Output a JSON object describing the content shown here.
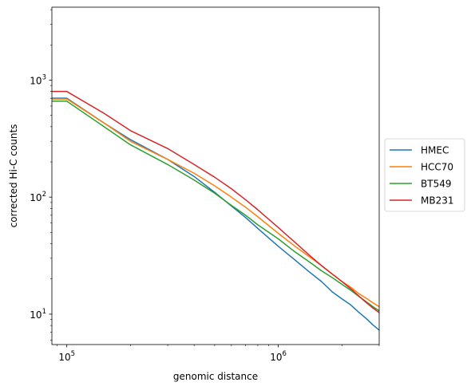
{
  "chart_data": {
    "type": "line",
    "title": "",
    "xlabel": "genomic distance",
    "ylabel": "corrected Hi-C counts",
    "xscale": "log",
    "yscale": "log",
    "xlim": [
      85000,
      3000000
    ],
    "ylim": [
      5.5,
      4200
    ],
    "grid": false,
    "legend_position": "outside-right",
    "x_ticks": [
      {
        "value": 100000,
        "base": "10",
        "exp": "5"
      },
      {
        "value": 1000000,
        "base": "10",
        "exp": "6"
      }
    ],
    "y_ticks": [
      {
        "value": 10,
        "base": "10",
        "exp": "1"
      },
      {
        "value": 100,
        "base": "10",
        "exp": "2"
      },
      {
        "value": 1000,
        "base": "10",
        "exp": "3"
      }
    ],
    "series": [
      {
        "name": "HMEC",
        "color": "#1f77b4",
        "x": [
          85000,
          100000,
          150000,
          200000,
          300000,
          400000,
          500000,
          600000,
          700000,
          800000,
          1000000,
          1200000,
          1400000,
          1600000,
          1800000,
          2000000,
          2200000,
          2400000,
          2600000,
          2800000,
          3000000
        ],
        "y": [
          700,
          700,
          430,
          310,
          210,
          150,
          110,
          84,
          67,
          54,
          38,
          29,
          23,
          19,
          15.5,
          13.5,
          12,
          10.4,
          9.2,
          8.1,
          7.3
        ]
      },
      {
        "name": "HCC70",
        "color": "#ff7f0e",
        "x": [
          85000,
          100000,
          150000,
          200000,
          300000,
          400000,
          500000,
          600000,
          700000,
          800000,
          1000000,
          1200000,
          1400000,
          1600000,
          1800000,
          2000000,
          2200000,
          2400000,
          2600000,
          2800000,
          3000000
        ],
        "y": [
          690,
          690,
          430,
          300,
          210,
          160,
          125,
          100,
          82,
          68,
          49,
          38,
          31,
          26,
          22,
          19,
          17,
          15,
          13.7,
          12.5,
          11.6
        ]
      },
      {
        "name": "BT549",
        "color": "#2ca02c",
        "x": [
          85000,
          100000,
          150000,
          200000,
          300000,
          400000,
          500000,
          600000,
          700000,
          800000,
          1000000,
          1200000,
          1400000,
          1600000,
          1800000,
          2000000,
          2200000,
          2400000,
          2600000,
          2800000,
          3000000
        ],
        "y": [
          660,
          660,
          400,
          280,
          190,
          140,
          108,
          85,
          70,
          58,
          44,
          34,
          28,
          23.5,
          20.5,
          18,
          16,
          14.2,
          12.8,
          11.6,
          10.7
        ]
      },
      {
        "name": "MB231",
        "color": "#d62728",
        "x": [
          85000,
          100000,
          150000,
          200000,
          300000,
          400000,
          500000,
          600000,
          700000,
          800000,
          1000000,
          1200000,
          1400000,
          1600000,
          1800000,
          2000000,
          2200000,
          2400000,
          2600000,
          2800000,
          3000000
        ],
        "y": [
          800,
          800,
          520,
          370,
          260,
          190,
          148,
          118,
          95,
          78,
          55,
          41,
          32,
          26,
          22,
          19,
          16.5,
          14.3,
          12.6,
          11.3,
          10.3
        ]
      }
    ]
  }
}
